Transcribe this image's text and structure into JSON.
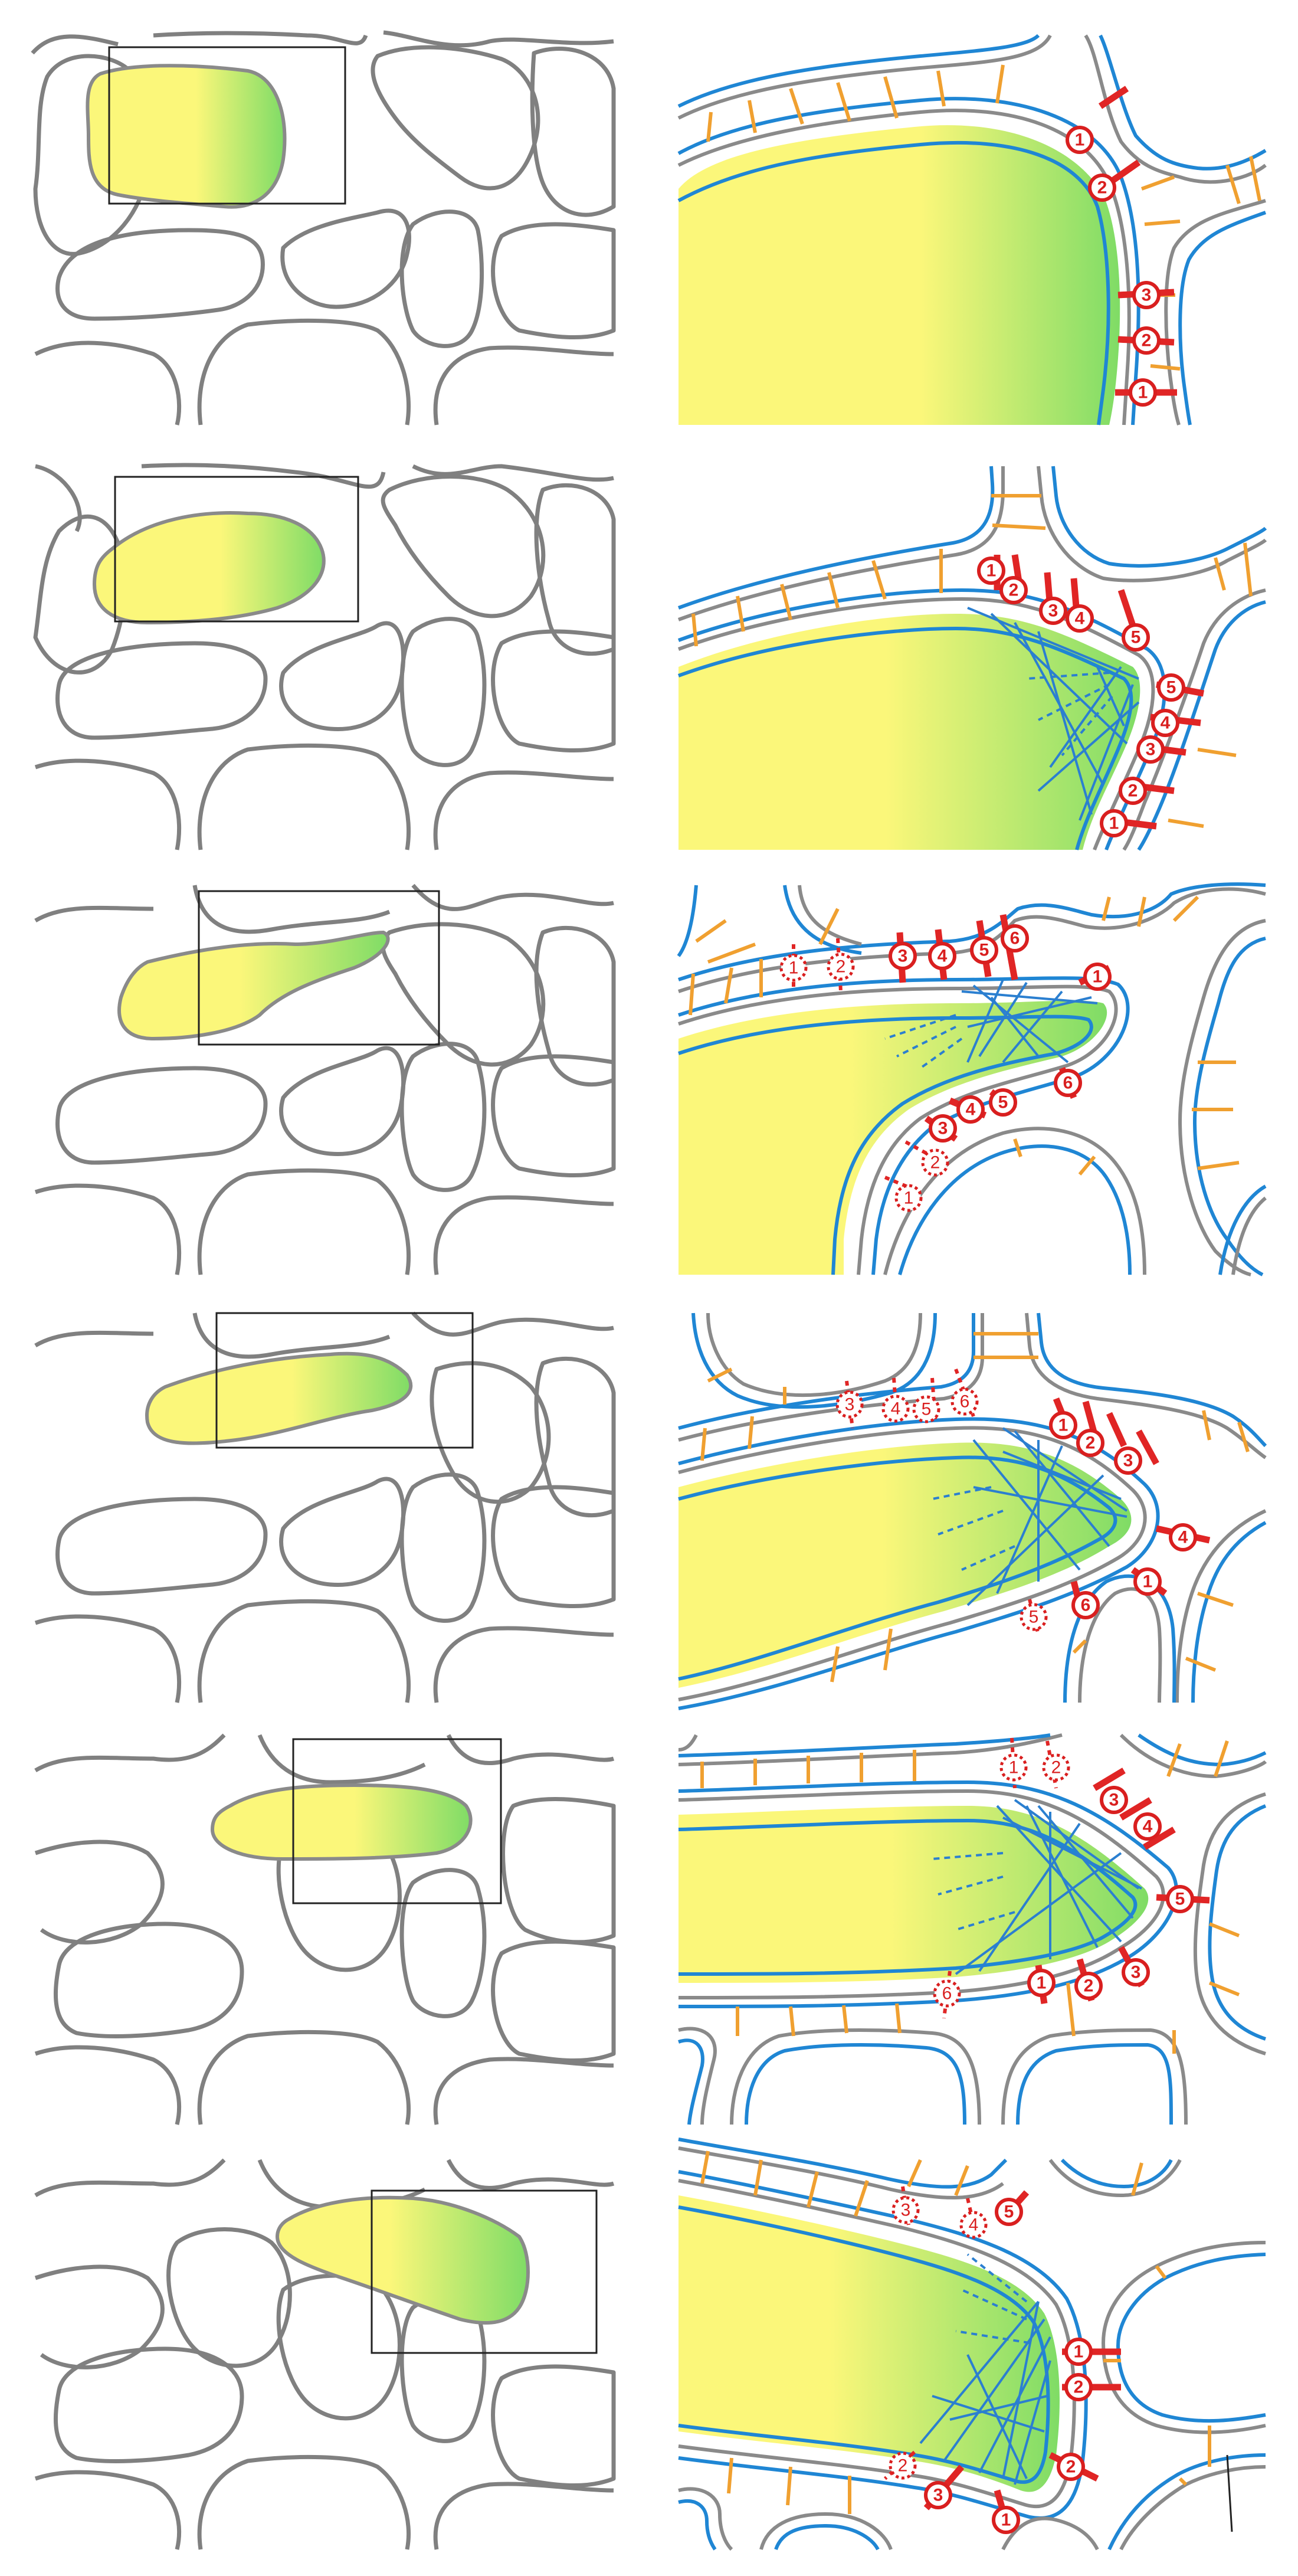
{
  "colors": {
    "cell_yellow": "#fbf77a",
    "cell_green": "#86dc6a",
    "cell_wall_gray": "#808080",
    "plasma_membrane_blue": "#1f86d4",
    "link_orange": "#f0a030",
    "link_red": "#e02525",
    "microtubule_blue": "#2b7fd0"
  },
  "panels": [
    {
      "row": 1,
      "badges": [
        "1",
        "2",
        "3",
        "2",
        "1"
      ],
      "dotted_badges": []
    },
    {
      "row": 2,
      "badges": [
        "1",
        "2",
        "3",
        "4",
        "5",
        "5",
        "4",
        "3",
        "2",
        "1"
      ],
      "dotted_badges": []
    },
    {
      "row": 3,
      "badges": [
        "3",
        "4",
        "5",
        "6",
        "1",
        "6",
        "5",
        "4",
        "3"
      ],
      "dotted_badges": [
        "1",
        "2",
        "2",
        "1"
      ]
    },
    {
      "row": 4,
      "badges": [
        "1",
        "2",
        "3",
        "4",
        "1",
        "6"
      ],
      "dotted_badges": [
        "3",
        "4",
        "5",
        "6",
        "5"
      ]
    },
    {
      "row": 5,
      "badges": [
        "3",
        "4",
        "5",
        "1",
        "2",
        "3"
      ],
      "dotted_badges": [
        "1",
        "2",
        "6"
      ]
    },
    {
      "row": 6,
      "badges": [
        "5",
        "1",
        "2",
        "2",
        "3",
        "1"
      ],
      "dotted_badges": [
        "3",
        "4",
        "2"
      ]
    }
  ]
}
